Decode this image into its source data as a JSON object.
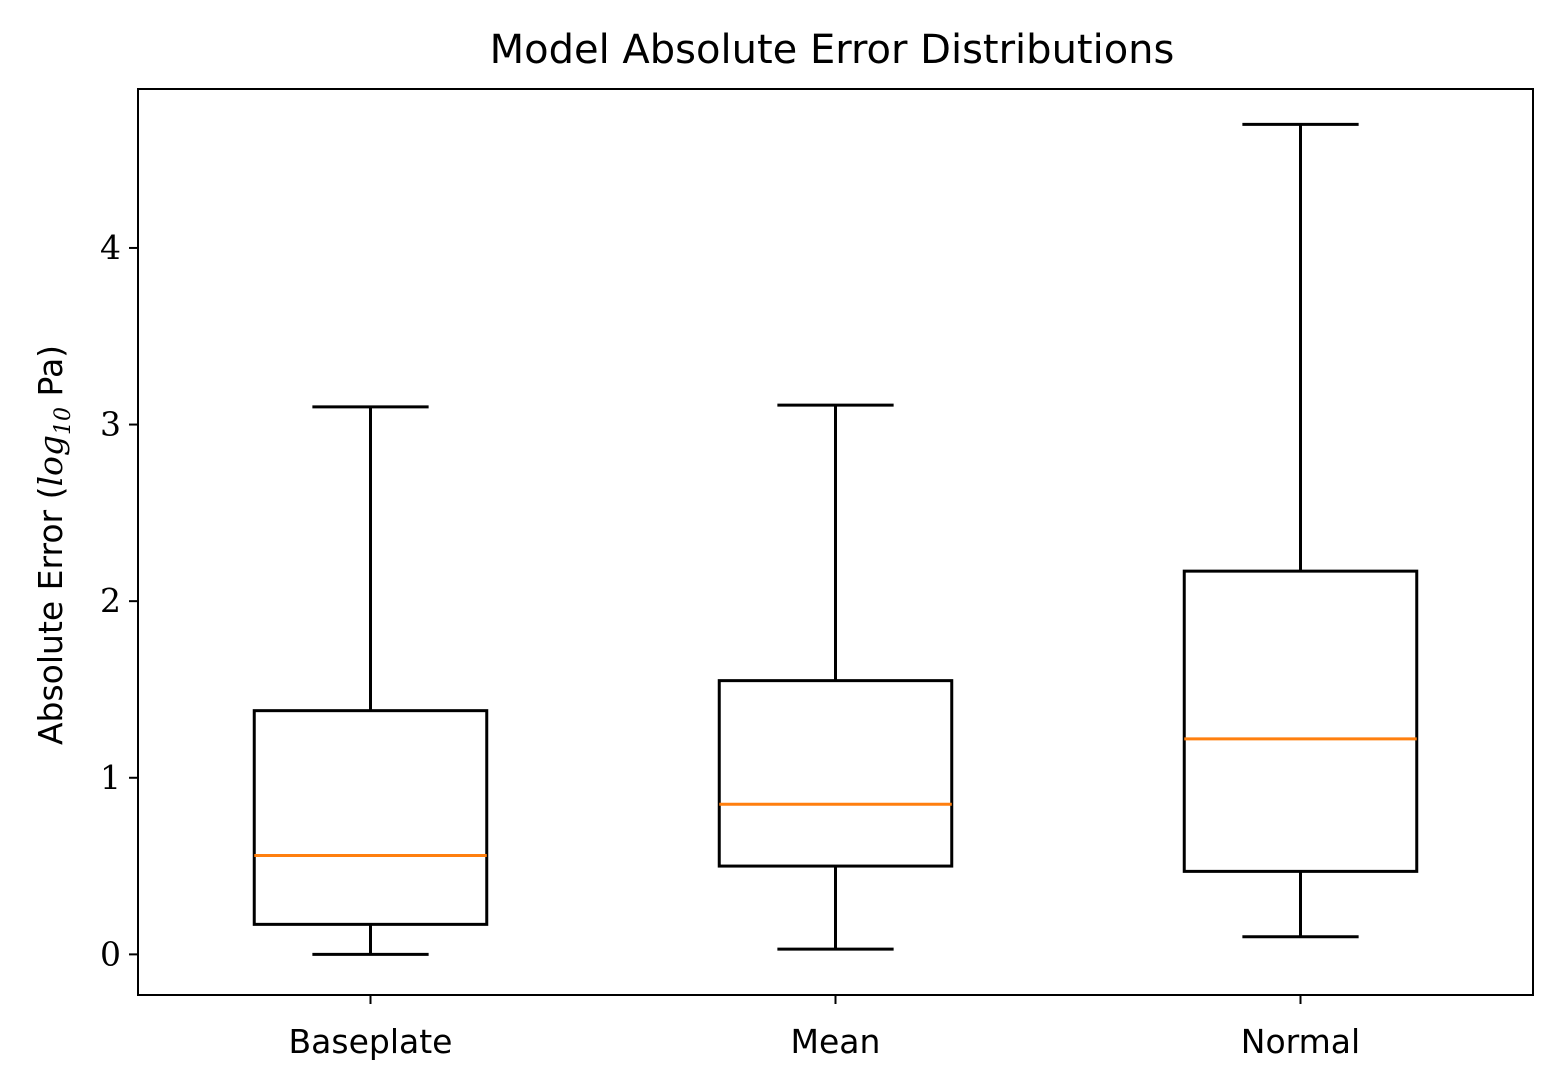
{
  "chart_data": {
    "type": "box",
    "title": "Model Absolute Error Distributions",
    "xlabel": "",
    "ylabel": {
      "prefix": "Absolute Error (",
      "log_base": "log",
      "log_subscript": "10",
      "suffix": " Pa)"
    },
    "categories": [
      "Baseplate",
      "Mean",
      "Normal"
    ],
    "ylim": [
      -0.23,
      4.9
    ],
    "yticks": [
      0,
      1,
      2,
      3,
      4
    ],
    "grid": false,
    "boxes": [
      {
        "category": "Baseplate",
        "whisker_low": 0.0,
        "q1": 0.17,
        "median": 0.56,
        "q3": 1.38,
        "whisker_high": 3.1
      },
      {
        "category": "Mean",
        "whisker_low": 0.03,
        "q1": 0.5,
        "median": 0.85,
        "q3": 1.55,
        "whisker_high": 3.11
      },
      {
        "category": "Normal",
        "whisker_low": 0.1,
        "q1": 0.47,
        "median": 1.22,
        "q3": 2.17,
        "whisker_high": 4.7
      }
    ],
    "colors": {
      "box": "#000000",
      "median": "#ff7f0e",
      "axes": "#000000"
    }
  }
}
